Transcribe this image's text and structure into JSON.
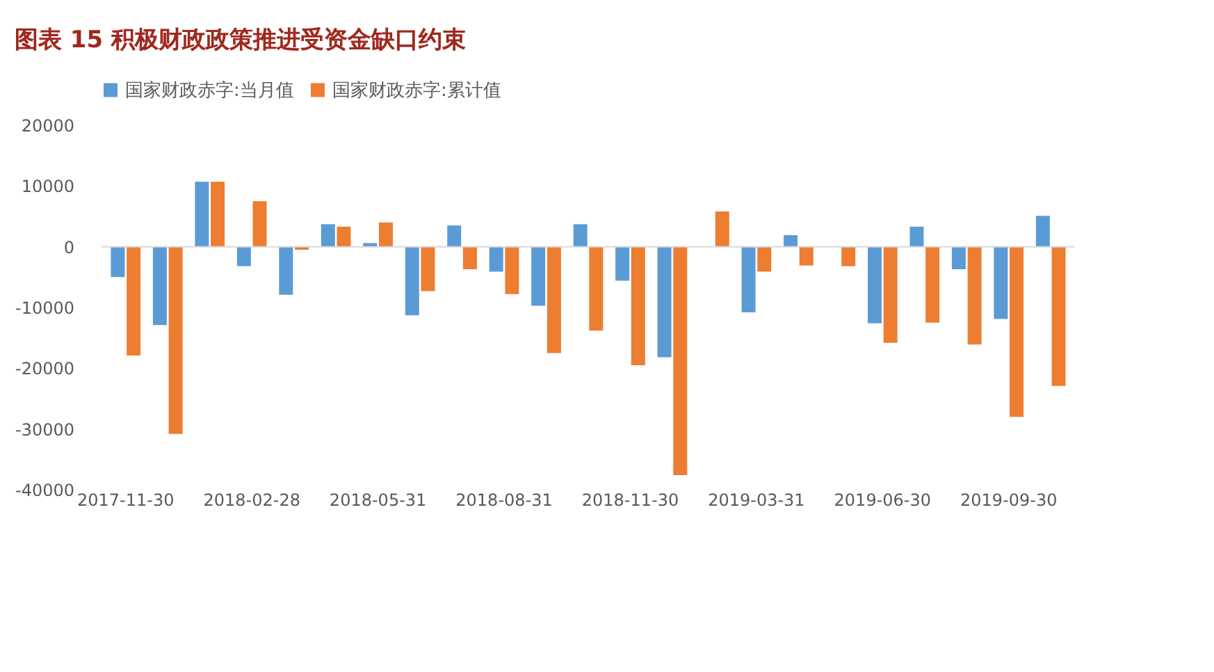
{
  "chart_data": {
    "type": "bar",
    "title": "图表 15   积极财政政策推进受资金缺口约束",
    "categories": [
      "2017-11-30",
      null,
      null,
      "2018-02-28",
      null,
      null,
      "2018-05-31",
      null,
      null,
      "2018-08-31",
      null,
      null,
      "2018-11-30",
      null,
      null,
      "2019-03-31",
      null,
      null,
      "2019-06-30",
      null,
      null,
      "2019-09-30",
      null
    ],
    "series": [
      {
        "name": "国家财政赤字:当月值",
        "color": "#5b9bd5",
        "values": [
          -5000,
          -12900,
          10700,
          -3200,
          -7900,
          3700,
          600,
          -11300,
          3500,
          -4100,
          -9700,
          3700,
          -5600,
          -18200,
          null,
          -10800,
          1900,
          null,
          -12600,
          3300,
          -3700,
          -11900,
          5100
        ]
      },
      {
        "name": "国家财政赤字:累计值",
        "color": "#ed7d31",
        "values": [
          -17900,
          -30800,
          10700,
          7500,
          -500,
          3300,
          4000,
          -7300,
          -3700,
          -7800,
          -17500,
          -13800,
          -19500,
          -37600,
          5800,
          -4100,
          -3100,
          -3200,
          -15800,
          -12500,
          -16100,
          -28000,
          -22900
        ]
      }
    ],
    "ylim": [
      -40000,
      20000
    ],
    "yticks": [
      -40000,
      -30000,
      -20000,
      -10000,
      0,
      10000,
      20000
    ],
    "ref_lines": [
      {
        "axis": "y",
        "value": 0,
        "color": "#d9d9d9"
      }
    ],
    "grid": false,
    "legend": "top"
  }
}
